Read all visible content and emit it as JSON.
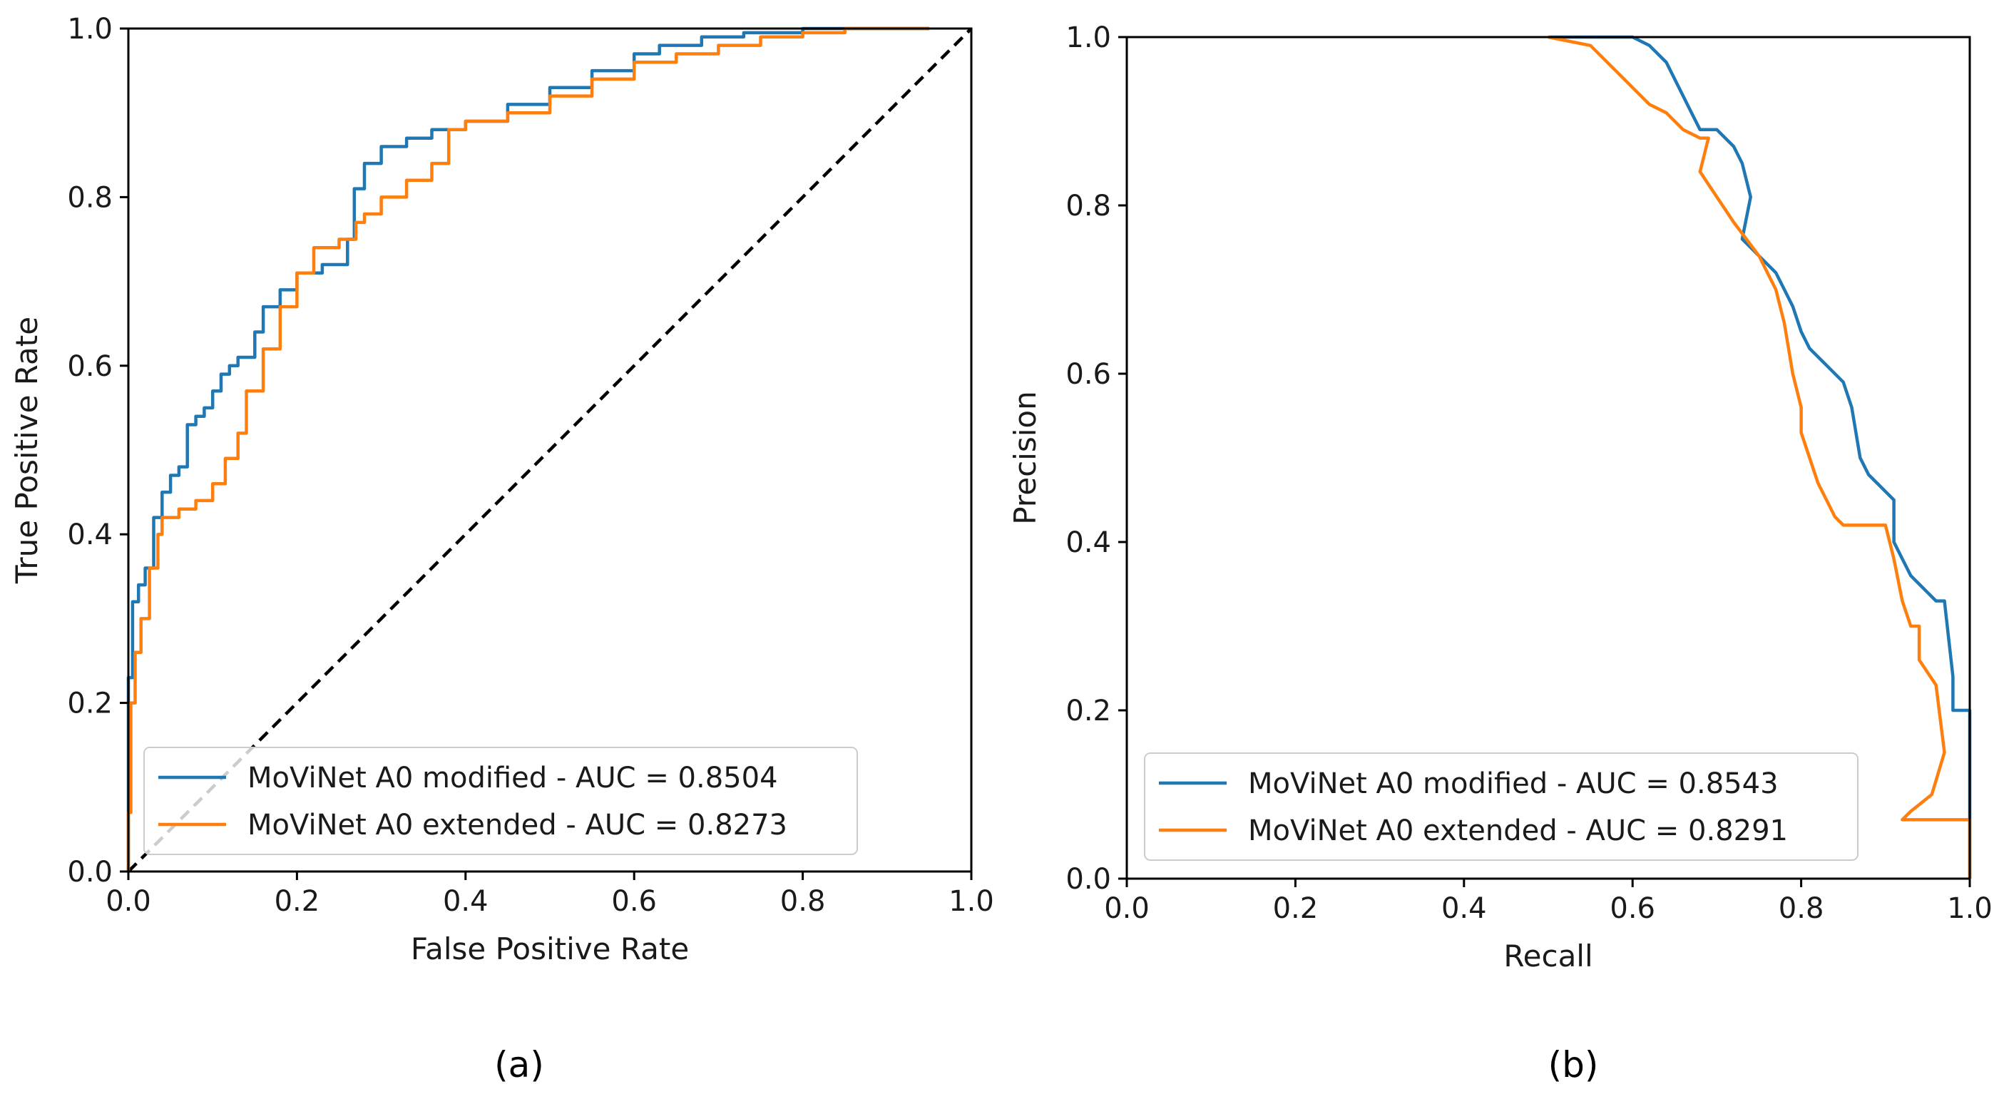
{
  "colors": {
    "series_1": "#1f77b4",
    "series_2": "#ff7f0e",
    "chance": "#000000"
  },
  "chart_data": [
    {
      "type": "line",
      "panel": "(a)",
      "title": "",
      "xlabel": "False Positive Rate",
      "ylabel": "True Positive Rate",
      "xlim": [
        0.0,
        1.0
      ],
      "ylim": [
        0.0,
        1.0
      ],
      "xticks": [
        "0.0",
        "0.2",
        "0.4",
        "0.6",
        "0.8",
        "1.0"
      ],
      "yticks": [
        "0.0",
        "0.2",
        "0.4",
        "0.6",
        "0.8",
        "1.0"
      ],
      "grid": false,
      "legend_position": "lower-right",
      "chance_line": {
        "x": [
          0,
          1
        ],
        "y": [
          0,
          1
        ]
      },
      "series": [
        {
          "name": "MoViNet A0 modified - AUC = 0.8504",
          "color": "#1f77b4",
          "x": [
            0,
            0,
            0.005,
            0.005,
            0.012,
            0.012,
            0.02,
            0.02,
            0.03,
            0.03,
            0.04,
            0.04,
            0.05,
            0.05,
            0.06,
            0.06,
            0.07,
            0.07,
            0.08,
            0.08,
            0.09,
            0.09,
            0.1,
            0.1,
            0.11,
            0.11,
            0.12,
            0.12,
            0.13,
            0.13,
            0.15,
            0.15,
            0.16,
            0.16,
            0.18,
            0.18,
            0.2,
            0.2,
            0.23,
            0.23,
            0.26,
            0.26,
            0.268,
            0.268,
            0.28,
            0.28,
            0.3,
            0.3,
            0.33,
            0.33,
            0.36,
            0.36,
            0.4,
            0.4,
            0.45,
            0.45,
            0.5,
            0.5,
            0.55,
            0.55,
            0.6,
            0.6,
            0.63,
            0.63,
            0.68,
            0.68,
            0.73,
            0.73,
            0.8,
            0.8,
            0.85,
            0.85,
            0.95
          ],
          "y": [
            0,
            0.23,
            0.23,
            0.32,
            0.32,
            0.34,
            0.34,
            0.36,
            0.36,
            0.42,
            0.42,
            0.45,
            0.45,
            0.47,
            0.47,
            0.48,
            0.48,
            0.53,
            0.53,
            0.54,
            0.54,
            0.55,
            0.55,
            0.57,
            0.57,
            0.59,
            0.59,
            0.6,
            0.6,
            0.61,
            0.61,
            0.64,
            0.64,
            0.67,
            0.67,
            0.69,
            0.69,
            0.71,
            0.71,
            0.72,
            0.72,
            0.75,
            0.75,
            0.81,
            0.81,
            0.84,
            0.84,
            0.86,
            0.86,
            0.87,
            0.87,
            0.88,
            0.88,
            0.89,
            0.89,
            0.91,
            0.91,
            0.93,
            0.93,
            0.95,
            0.95,
            0.97,
            0.97,
            0.98,
            0.98,
            0.99,
            0.99,
            0.995,
            0.995,
            1.0,
            1.0,
            1.0,
            1.0
          ]
        },
        {
          "name": "MoViNet A0 extended - AUC = 0.8273",
          "color": "#ff7f0e",
          "x": [
            0,
            0,
            0.003,
            0.003,
            0.008,
            0.008,
            0.015,
            0.015,
            0.025,
            0.025,
            0.035,
            0.035,
            0.04,
            0.04,
            0.06,
            0.06,
            0.08,
            0.08,
            0.1,
            0.1,
            0.115,
            0.115,
            0.13,
            0.13,
            0.14,
            0.14,
            0.16,
            0.16,
            0.18,
            0.18,
            0.2,
            0.2,
            0.22,
            0.22,
            0.25,
            0.25,
            0.27,
            0.27,
            0.28,
            0.28,
            0.3,
            0.3,
            0.33,
            0.33,
            0.36,
            0.36,
            0.38,
            0.38,
            0.4,
            0.4,
            0.45,
            0.45,
            0.5,
            0.5,
            0.55,
            0.55,
            0.6,
            0.6,
            0.65,
            0.65,
            0.7,
            0.7,
            0.75,
            0.75,
            0.8,
            0.8,
            0.85,
            0.85,
            0.95
          ],
          "y": [
            0,
            0.07,
            0.07,
            0.2,
            0.2,
            0.26,
            0.26,
            0.3,
            0.3,
            0.36,
            0.36,
            0.4,
            0.4,
            0.42,
            0.42,
            0.43,
            0.43,
            0.44,
            0.44,
            0.46,
            0.46,
            0.49,
            0.49,
            0.52,
            0.52,
            0.57,
            0.57,
            0.62,
            0.62,
            0.67,
            0.67,
            0.71,
            0.71,
            0.74,
            0.74,
            0.75,
            0.75,
            0.77,
            0.77,
            0.78,
            0.78,
            0.8,
            0.8,
            0.82,
            0.82,
            0.84,
            0.84,
            0.88,
            0.88,
            0.89,
            0.89,
            0.9,
            0.9,
            0.92,
            0.92,
            0.94,
            0.94,
            0.96,
            0.96,
            0.97,
            0.97,
            0.98,
            0.98,
            0.99,
            0.99,
            0.995,
            0.995,
            1.0,
            1.0
          ]
        }
      ]
    },
    {
      "type": "line",
      "panel": "(b)",
      "title": "",
      "xlabel": "Recall",
      "ylabel": "Precision",
      "xlim": [
        0.0,
        1.0
      ],
      "ylim": [
        0.0,
        1.0
      ],
      "xticks": [
        "0.0",
        "0.2",
        "0.4",
        "0.6",
        "0.8",
        "1.0"
      ],
      "yticks": [
        "0.0",
        "0.2",
        "0.4",
        "0.6",
        "0.8",
        "1.0"
      ],
      "grid": false,
      "legend_position": "lower-left",
      "series": [
        {
          "name": "MoViNet A0 modified - AUC = 0.8543",
          "color": "#1f77b4",
          "x": [
            0.5,
            0.6,
            0.62,
            0.64,
            0.65,
            0.66,
            0.67,
            0.68,
            0.7,
            0.72,
            0.73,
            0.74,
            0.73,
            0.75,
            0.77,
            0.78,
            0.79,
            0.8,
            0.81,
            0.83,
            0.85,
            0.86,
            0.87,
            0.88,
            0.89,
            0.9,
            0.91,
            0.91,
            0.92,
            0.93,
            0.94,
            0.95,
            0.96,
            0.97,
            0.98,
            0.98,
            1.0,
            1.0
          ],
          "y": [
            1.0,
            1.0,
            0.99,
            0.97,
            0.95,
            0.93,
            0.91,
            0.89,
            0.89,
            0.87,
            0.85,
            0.81,
            0.76,
            0.74,
            0.72,
            0.7,
            0.68,
            0.65,
            0.63,
            0.61,
            0.59,
            0.56,
            0.5,
            0.48,
            0.47,
            0.46,
            0.45,
            0.4,
            0.38,
            0.36,
            0.35,
            0.34,
            0.33,
            0.33,
            0.24,
            0.2,
            0.2,
            0.0
          ]
        },
        {
          "name": "MoViNet A0 extended - AUC = 0.8291",
          "color": "#ff7f0e",
          "x": [
            0.5,
            0.55,
            0.58,
            0.6,
            0.62,
            0.64,
            0.66,
            0.68,
            0.69,
            0.68,
            0.7,
            0.72,
            0.75,
            0.77,
            0.78,
            0.79,
            0.8,
            0.8,
            0.81,
            0.82,
            0.83,
            0.84,
            0.85,
            0.86,
            0.88,
            0.9,
            0.91,
            0.92,
            0.93,
            0.94,
            0.94,
            0.96,
            0.97,
            0.955,
            0.93,
            0.92,
            1.0,
            1.0
          ],
          "y": [
            1.0,
            0.99,
            0.96,
            0.94,
            0.92,
            0.91,
            0.89,
            0.88,
            0.88,
            0.84,
            0.81,
            0.78,
            0.74,
            0.7,
            0.66,
            0.6,
            0.56,
            0.53,
            0.5,
            0.47,
            0.45,
            0.43,
            0.42,
            0.42,
            0.42,
            0.42,
            0.38,
            0.33,
            0.3,
            0.3,
            0.26,
            0.23,
            0.15,
            0.1,
            0.08,
            0.07,
            0.07,
            0.0
          ]
        }
      ]
    }
  ]
}
